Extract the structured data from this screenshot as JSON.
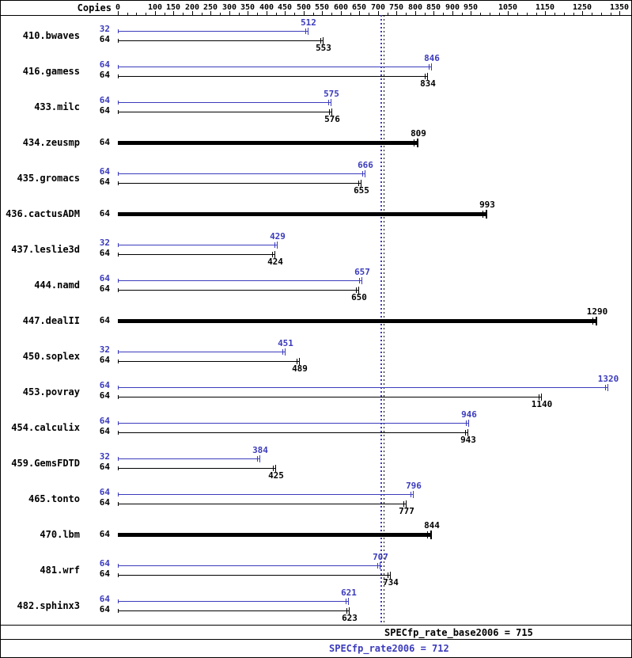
{
  "header": {
    "copies_label": "Copies"
  },
  "axis": {
    "tick_labels": [
      0,
      100,
      150,
      200,
      250,
      300,
      350,
      400,
      450,
      500,
      550,
      600,
      650,
      700,
      750,
      800,
      850,
      900,
      950,
      1050,
      1150,
      1250,
      1350
    ],
    "minor_tick_step": 25,
    "max": 1360
  },
  "chart_data": {
    "type": "bar",
    "orientation": "horizontal",
    "title": "SPECfp_rate2006 result chart",
    "xlabel": "Copies",
    "xlim": [
      0,
      1360
    ],
    "benchmarks": [
      {
        "name": "410.bwaves",
        "peak": {
          "copies": 32,
          "value": 512
        },
        "base": {
          "copies": 64,
          "value": 553
        }
      },
      {
        "name": "416.gamess",
        "peak": {
          "copies": 64,
          "value": 846
        },
        "base": {
          "copies": 64,
          "value": 834
        }
      },
      {
        "name": "433.milc",
        "peak": {
          "copies": 64,
          "value": 575
        },
        "base": {
          "copies": 64,
          "value": 576
        }
      },
      {
        "name": "434.zeusmp",
        "base_only": true,
        "base": {
          "copies": 64,
          "value": 809
        }
      },
      {
        "name": "435.gromacs",
        "peak": {
          "copies": 64,
          "value": 666
        },
        "base": {
          "copies": 64,
          "value": 655
        }
      },
      {
        "name": "436.cactusADM",
        "base_only": true,
        "base": {
          "copies": 64,
          "value": 993
        }
      },
      {
        "name": "437.leslie3d",
        "peak": {
          "copies": 32,
          "value": 429
        },
        "base": {
          "copies": 64,
          "value": 424
        }
      },
      {
        "name": "444.namd",
        "peak": {
          "copies": 64,
          "value": 657
        },
        "base": {
          "copies": 64,
          "value": 650
        }
      },
      {
        "name": "447.dealII",
        "base_only": true,
        "base": {
          "copies": 64,
          "value": 1290
        }
      },
      {
        "name": "450.soplex",
        "peak": {
          "copies": 32,
          "value": 451
        },
        "base": {
          "copies": 64,
          "value": 489
        }
      },
      {
        "name": "453.povray",
        "peak": {
          "copies": 64,
          "value": 1320
        },
        "base": {
          "copies": 64,
          "value": 1140
        }
      },
      {
        "name": "454.calculix",
        "peak": {
          "copies": 64,
          "value": 946
        },
        "base": {
          "copies": 64,
          "value": 943
        }
      },
      {
        "name": "459.GemsFDTD",
        "peak": {
          "copies": 32,
          "value": 384
        },
        "base": {
          "copies": 64,
          "value": 425
        }
      },
      {
        "name": "465.tonto",
        "peak": {
          "copies": 64,
          "value": 796
        },
        "base": {
          "copies": 64,
          "value": 777
        }
      },
      {
        "name": "470.lbm",
        "base_only": true,
        "base": {
          "copies": 64,
          "value": 844
        }
      },
      {
        "name": "481.wrf",
        "peak": {
          "copies": 64,
          "value": 707
        },
        "base": {
          "copies": 64,
          "value": 734
        }
      },
      {
        "name": "482.sphinx3",
        "peak": {
          "copies": 64,
          "value": 621
        },
        "base": {
          "copies": 64,
          "value": 623
        }
      }
    ],
    "reference_lines": [
      {
        "name": "base",
        "value": 715,
        "color": "#000000"
      },
      {
        "name": "peak",
        "value": 712,
        "color": "#3b3bbd"
      }
    ]
  },
  "footer": {
    "base_text": "SPECfp_rate_base2006 = 715",
    "peak_text": "SPECfp_rate2006 = 712"
  },
  "colors": {
    "peak": "#3b3bbd",
    "base": "#000000",
    "background": "#ffffff"
  }
}
